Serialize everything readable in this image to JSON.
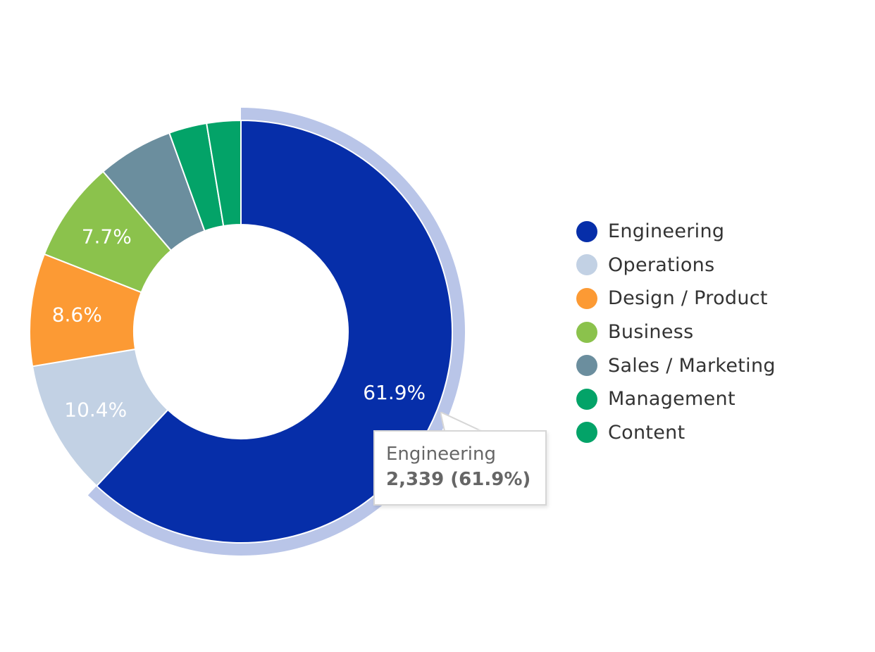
{
  "chart_data": {
    "type": "pie",
    "variant": "donut",
    "series": [
      {
        "name": "Engineering",
        "value": 2339,
        "percent": 61.9,
        "label": "61.9%",
        "color": "#062ea9"
      },
      {
        "name": "Operations",
        "percent": 10.4,
        "label": "10.4%",
        "color": "#c2d1e4"
      },
      {
        "name": "Design / Product",
        "percent": 8.6,
        "label": "8.6%",
        "color": "#fc9a34"
      },
      {
        "name": "Business",
        "percent": 7.7,
        "label": "7.7%",
        "color": "#8bc24c"
      },
      {
        "name": "Sales / Marketing",
        "percent": 5.8,
        "label": "",
        "color": "#6b8e9e"
      },
      {
        "name": "Management",
        "percent": 2.9,
        "label": "",
        "color": "#03a368"
      },
      {
        "name": "Content",
        "percent": 2.6,
        "label": "",
        "color": "#03a368"
      }
    ],
    "highlighted": "Engineering",
    "highlight_color": "#b9c5e8",
    "legend_position": "right"
  },
  "tooltip": {
    "name": "Engineering",
    "value_text": "2,339 (61.9%)"
  }
}
